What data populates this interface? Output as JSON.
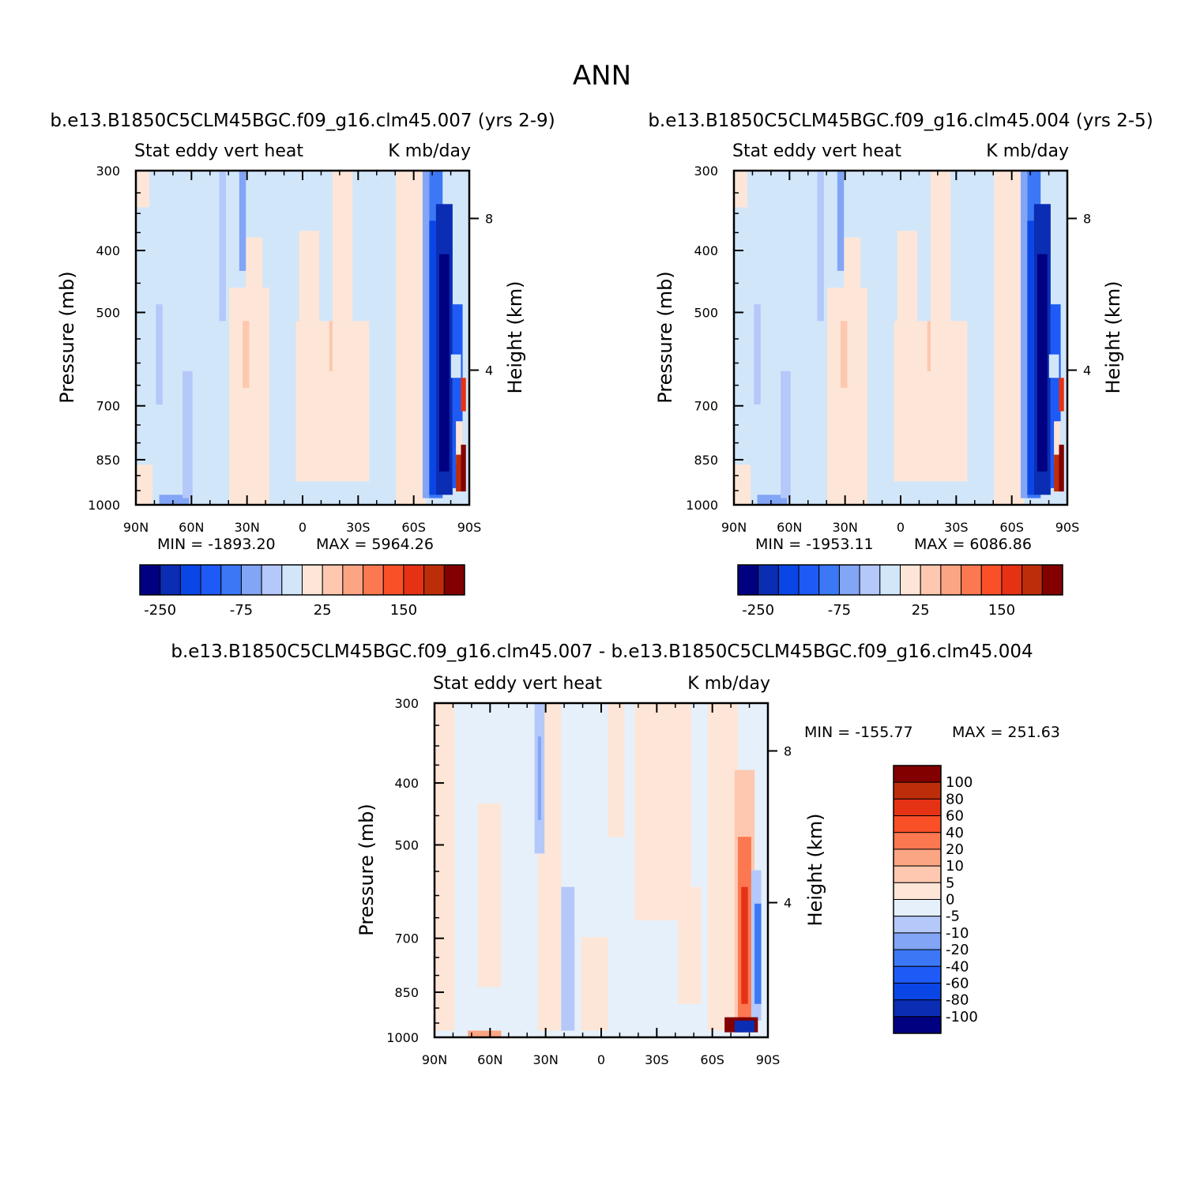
{
  "figure": {
    "title": "ANN"
  },
  "colors": {
    "panel_scale": [
      "#000080",
      "#0a2db4",
      "#0a46e6",
      "#1e5af5",
      "#3c78f5",
      "#82a5f5",
      "#b4c8fa",
      "#d2e6fa",
      "#fde6d7",
      "#fdc8af",
      "#fca582",
      "#fc7850",
      "#fa5028",
      "#e63214",
      "#be2d0a",
      "#820000"
    ],
    "diff_scale": [
      "#000080",
      "#0a2db4",
      "#0a46e6",
      "#1e5af5",
      "#3c78f5",
      "#82a5f5",
      "#b4c8fa",
      "#e6f0fa",
      "#fde6d7",
      "#fdc8af",
      "#fca582",
      "#fc7850",
      "#fa5028",
      "#e63214",
      "#be2d0a",
      "#820000"
    ]
  },
  "chart_data": [
    {
      "type": "heatmap",
      "title": "b.e13.B1850C5CLM45BGC.f09_g16.clm45.007 (yrs 2-9)",
      "variable": "Stat eddy vert heat",
      "units": "K mb/day",
      "xlabel": "",
      "ylabel": "Pressure (mb)",
      "ylabel_right": "Height (km)",
      "x_ticks": [
        "90N",
        "60N",
        "30N",
        "0",
        "30S",
        "60S",
        "90S"
      ],
      "y_ticks": [
        "300",
        "400",
        "500",
        "700",
        "850",
        "1000"
      ],
      "y_ticks_right": [
        "8",
        "4"
      ],
      "ylim": [
        1000,
        300
      ],
      "y_scale": "log",
      "min_label": "MIN = -1893.20",
      "max_label": "MAX = 5964.26",
      "colorbar_labels": [
        "-250",
        "-75",
        "25",
        "150"
      ]
    },
    {
      "type": "heatmap",
      "title": "b.e13.B1850C5CLM45BGC.f09_g16.clm45.004 (yrs 2-5)",
      "variable": "Stat eddy vert heat",
      "units": "K mb/day",
      "xlabel": "",
      "ylabel": "Pressure (mb)",
      "ylabel_right": "Height (km)",
      "x_ticks": [
        "90N",
        "60N",
        "30N",
        "0",
        "30S",
        "60S",
        "90S"
      ],
      "y_ticks": [
        "300",
        "400",
        "500",
        "700",
        "850",
        "1000"
      ],
      "y_ticks_right": [
        "8",
        "4"
      ],
      "ylim": [
        1000,
        300
      ],
      "y_scale": "log",
      "min_label": "MIN = -1953.11",
      "max_label": "MAX = 6086.86",
      "colorbar_labels": [
        "-250",
        "-75",
        "25",
        "150"
      ]
    },
    {
      "type": "heatmap",
      "title": "b.e13.B1850C5CLM45BGC.f09_g16.clm45.007 - b.e13.B1850C5CLM45BGC.f09_g16.clm45.004",
      "variable": "Stat eddy vert heat",
      "units": "K mb/day",
      "xlabel": "",
      "ylabel": "Pressure (mb)",
      "ylabel_right": "Height (km)",
      "x_ticks": [
        "90N",
        "60N",
        "30N",
        "0",
        "30S",
        "60S",
        "90S"
      ],
      "y_ticks": [
        "300",
        "400",
        "500",
        "700",
        "850",
        "1000"
      ],
      "y_ticks_right": [
        "8",
        "4"
      ],
      "ylim": [
        1000,
        300
      ],
      "y_scale": "log",
      "min_label": "MIN = -155.77",
      "max_label": "MAX = 251.63",
      "colorbar_labels": [
        "100",
        "80",
        "60",
        "40",
        "20",
        "10",
        "5",
        "0",
        "-5",
        "-10",
        "-20",
        "-40",
        "-60",
        "-80",
        "-100"
      ]
    }
  ]
}
